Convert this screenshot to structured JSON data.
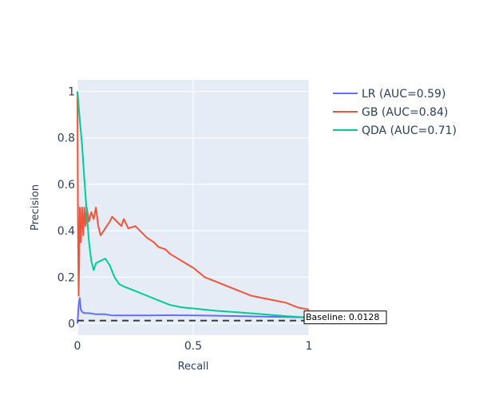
{
  "chart_data": {
    "type": "line",
    "title": "",
    "xlabel": "Recall",
    "ylabel": "Precision",
    "xlim": [
      0,
      1
    ],
    "ylim": [
      -0.05,
      1.05
    ],
    "x_ticks": [
      0,
      0.5,
      1
    ],
    "x_tick_labels": [
      "0",
      "0.5",
      "1"
    ],
    "y_ticks": [
      0,
      0.2,
      0.4,
      0.6,
      0.8,
      1
    ],
    "y_tick_labels": [
      "0",
      "0.2",
      "0.4",
      "0.6",
      "0.8",
      "1"
    ],
    "grid": true,
    "legend_position": "top-right",
    "series": [
      {
        "name": "LR (AUC=0.59)",
        "color": "#636efa",
        "x": [
          0,
          0.005,
          0.01,
          0.015,
          0.02,
          0.03,
          0.05,
          0.08,
          0.12,
          0.15,
          0.2,
          0.3,
          0.4,
          0.5,
          0.6,
          0.7,
          0.8,
          0.9,
          1.0
        ],
        "y": [
          0.0,
          0.08,
          0.11,
          0.06,
          0.05,
          0.045,
          0.045,
          0.04,
          0.04,
          0.035,
          0.035,
          0.035,
          0.036,
          0.035,
          0.034,
          0.032,
          0.03,
          0.028,
          0.026
        ]
      },
      {
        "name": "GB (AUC=0.84)",
        "color": "#ef553b",
        "x": [
          0,
          0.002,
          0.005,
          0.008,
          0.01,
          0.015,
          0.02,
          0.025,
          0.03,
          0.035,
          0.04,
          0.05,
          0.06,
          0.07,
          0.08,
          0.09,
          0.1,
          0.12,
          0.14,
          0.15,
          0.17,
          0.19,
          0.2,
          0.22,
          0.25,
          0.27,
          0.3,
          0.33,
          0.35,
          0.38,
          0.4,
          0.45,
          0.5,
          0.55,
          0.6,
          0.65,
          0.7,
          0.75,
          0.8,
          0.85,
          0.9,
          0.95,
          1.0
        ],
        "y": [
          1.0,
          0.45,
          0.12,
          0.3,
          0.5,
          0.35,
          0.5,
          0.38,
          0.5,
          0.42,
          0.5,
          0.44,
          0.48,
          0.45,
          0.5,
          0.42,
          0.38,
          0.41,
          0.44,
          0.46,
          0.44,
          0.42,
          0.45,
          0.41,
          0.42,
          0.4,
          0.37,
          0.35,
          0.33,
          0.32,
          0.3,
          0.27,
          0.24,
          0.2,
          0.18,
          0.16,
          0.14,
          0.12,
          0.11,
          0.1,
          0.09,
          0.07,
          0.06
        ]
      },
      {
        "name": "QDA (AUC=0.71)",
        "color": "#00cc96",
        "x": [
          0,
          0.01,
          0.02,
          0.03,
          0.04,
          0.05,
          0.06,
          0.07,
          0.08,
          0.1,
          0.12,
          0.14,
          0.16,
          0.18,
          0.2,
          0.25,
          0.3,
          0.35,
          0.4,
          0.45,
          0.5,
          0.55,
          0.6,
          0.7,
          0.8,
          0.9,
          1.0
        ],
        "y": [
          1.0,
          0.88,
          0.77,
          0.62,
          0.48,
          0.35,
          0.27,
          0.23,
          0.26,
          0.27,
          0.28,
          0.25,
          0.2,
          0.17,
          0.16,
          0.14,
          0.12,
          0.1,
          0.08,
          0.07,
          0.065,
          0.06,
          0.055,
          0.048,
          0.04,
          0.032,
          0.026
        ]
      }
    ],
    "baseline": {
      "value": 0.0128,
      "label": "Baseline: 0.0128",
      "color": "#3c3c3c"
    },
    "plot_background": "#e5ecf6",
    "grid_color": "#ffffff"
  }
}
